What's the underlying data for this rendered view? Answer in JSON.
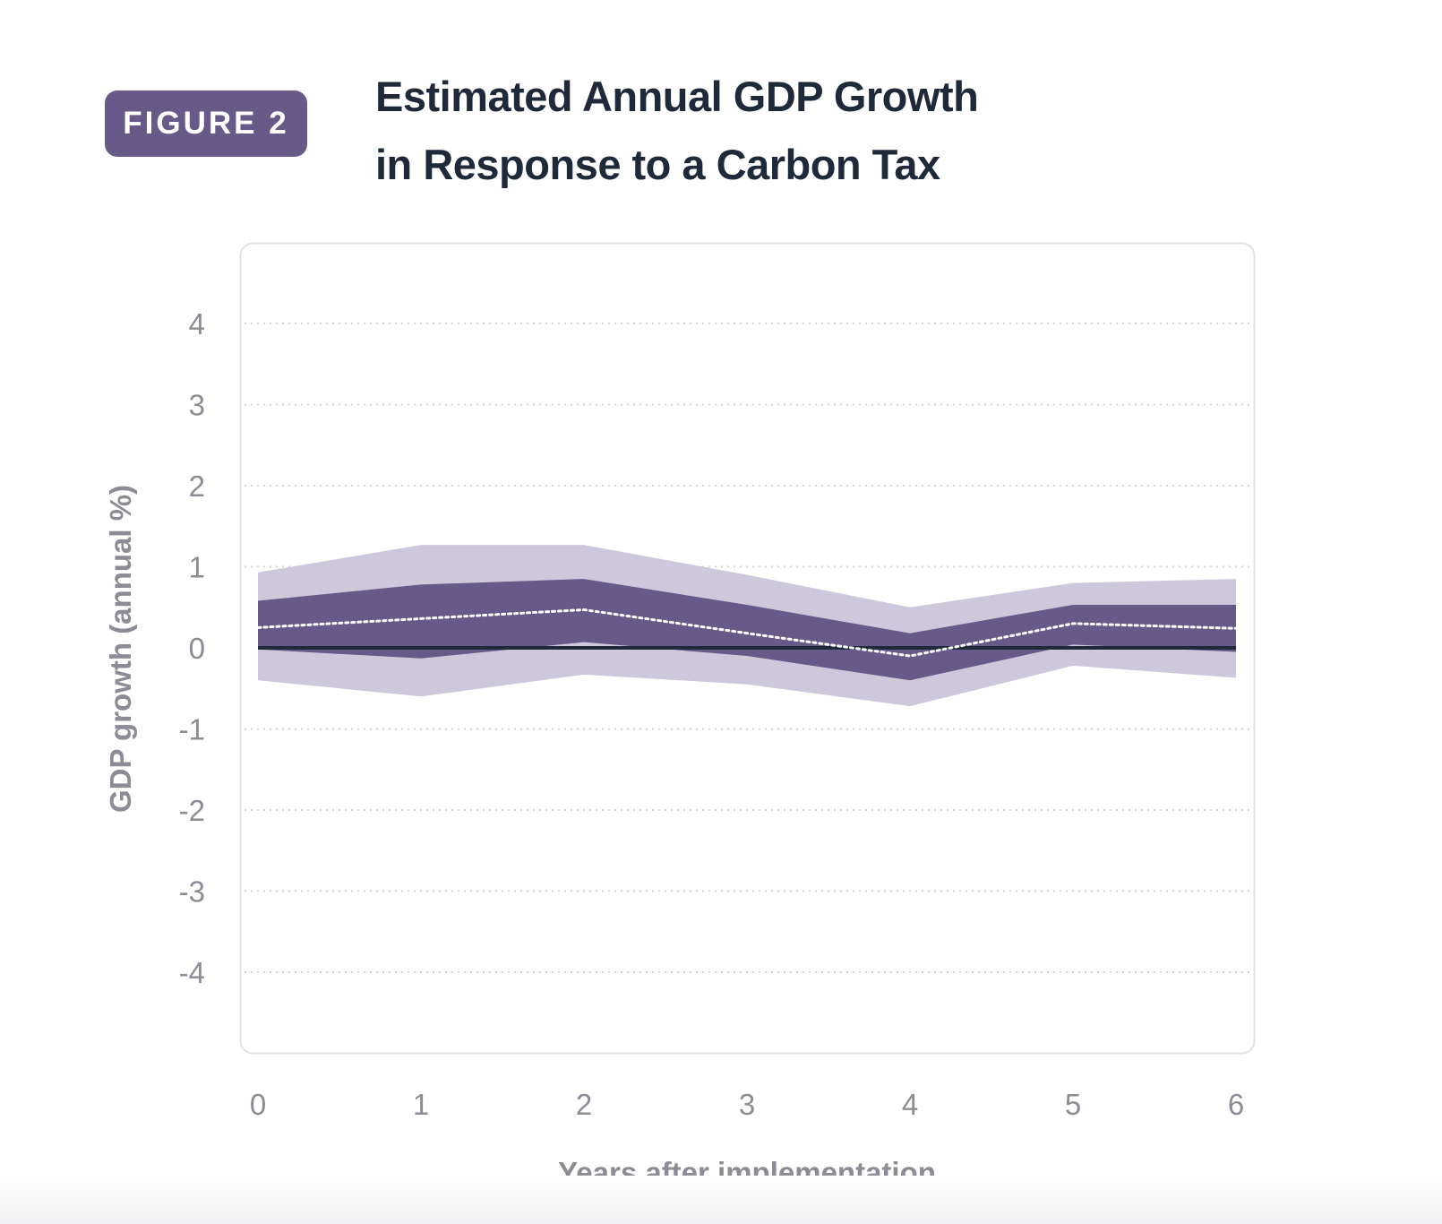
{
  "badge": {
    "label": "FIGURE 2"
  },
  "title": {
    "line1": "Estimated Annual GDP Growth",
    "line2": "in Response to a Carbon Tax"
  },
  "colors": {
    "outer_band": "#cdc8dc",
    "inner_band": "#675988",
    "median_line": "#ffffff",
    "zero_line": "#1e2a3a",
    "grid": "#d3d3d8",
    "tick_text": "#8c8c96",
    "axis_title": "#8c8c96",
    "frame": "#e2e2e6"
  },
  "chart_data": {
    "type": "area",
    "title": "Estimated Annual GDP Growth in Response to a Carbon Tax",
    "xlabel": "Years after implementation",
    "ylabel": "GDP growth (annual %)",
    "x": [
      0,
      1,
      2,
      3,
      4,
      5,
      6
    ],
    "xlim": [
      0,
      6
    ],
    "ylim": [
      -4,
      4
    ],
    "yticks": [
      4,
      3,
      2,
      1,
      0,
      -1,
      -2,
      -3,
      -4
    ],
    "xticks": [
      0,
      1,
      2,
      3,
      4,
      5,
      6
    ],
    "grid": "horizontal dotted",
    "series": [
      {
        "role": "outer-band",
        "upper": [
          0.93,
          1.27,
          1.27,
          0.9,
          0.5,
          0.8,
          0.85
        ],
        "lower": [
          -0.4,
          -0.6,
          -0.33,
          -0.45,
          -0.72,
          -0.22,
          -0.37
        ]
      },
      {
        "role": "inner-band",
        "upper": [
          0.58,
          0.78,
          0.85,
          0.53,
          0.18,
          0.53,
          0.53
        ],
        "lower": [
          -0.02,
          -0.13,
          0.07,
          -0.1,
          -0.4,
          0.04,
          -0.05
        ]
      },
      {
        "role": "central-estimate",
        "style": "dotted",
        "values": [
          0.25,
          0.36,
          0.47,
          0.18,
          -0.1,
          0.3,
          0.24
        ]
      },
      {
        "role": "zero-baseline",
        "style": "solid",
        "values": [
          0,
          0,
          0,
          0,
          0,
          0,
          0
        ]
      }
    ]
  }
}
